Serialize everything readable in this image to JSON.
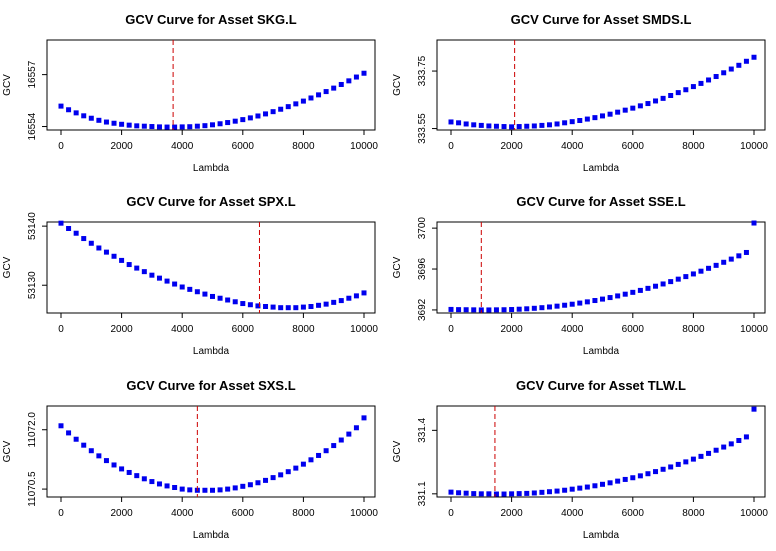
{
  "chart_data": [
    {
      "type": "scatter",
      "title": "GCV Curve for Asset SKG.L",
      "xlabel": "Lambda",
      "ylabel": "GCV",
      "xlim": [
        0,
        10000
      ],
      "ylim": [
        16553.8,
        16559.0
      ],
      "xticks": [
        "0",
        "2000",
        "4000",
        "6000",
        "8000",
        "10000"
      ],
      "yticks": [
        {
          "label": "16554",
          "value": 16554
        },
        {
          "label": "16557",
          "value": 16557
        }
      ],
      "vline": 3700,
      "point_color": "#0000EE",
      "vline_color": "#CC0000",
      "x": [
        0,
        250,
        500,
        750,
        1000,
        1250,
        1500,
        1750,
        2000,
        2250,
        2500,
        2750,
        3000,
        3250,
        3500,
        3750,
        4000,
        4250,
        4500,
        4750,
        5000,
        5250,
        5500,
        5750,
        6000,
        6250,
        6500,
        6750,
        7000,
        7250,
        7500,
        7750,
        8000,
        8250,
        8500,
        8750,
        9000,
        9250,
        9500,
        9750,
        10000
      ],
      "y": [
        16555.18,
        16554.97,
        16554.79,
        16554.62,
        16554.48,
        16554.36,
        16554.26,
        16554.19,
        16554.13,
        16554.08,
        16554.04,
        16554.02,
        16554.0,
        16553.98,
        16553.97,
        16553.97,
        16553.98,
        16553.99,
        16554.02,
        16554.05,
        16554.1,
        16554.16,
        16554.23,
        16554.31,
        16554.4,
        16554.5,
        16554.61,
        16554.73,
        16554.86,
        16555.0,
        16555.15,
        16555.31,
        16555.47,
        16555.65,
        16555.83,
        16556.02,
        16556.22,
        16556.43,
        16556.64,
        16556.86,
        16557.08
      ]
    },
    {
      "type": "scatter",
      "title": "GCV Curve for Asset SMDS.L",
      "xlabel": "Lambda",
      "ylabel": "GCV",
      "xlim": [
        0,
        10000
      ],
      "ylim": [
        333.545,
        333.858
      ],
      "xticks": [
        "0",
        "2000",
        "4000",
        "6000",
        "8000",
        "10000"
      ],
      "yticks": [
        {
          "label": "333.55",
          "value": 333.55
        },
        {
          "label": "333.75",
          "value": 333.75
        }
      ],
      "vline": 2100,
      "point_color": "#0000EE",
      "vline_color": "#CC0000",
      "x": [
        0,
        250,
        500,
        750,
        1000,
        1250,
        1500,
        1750,
        2000,
        2250,
        2500,
        2750,
        3000,
        3250,
        3500,
        3750,
        4000,
        4250,
        4500,
        4750,
        5000,
        5250,
        5500,
        5750,
        6000,
        6250,
        6500,
        6750,
        7000,
        7250,
        7500,
        7750,
        8000,
        8250,
        8500,
        8750,
        9000,
        9250,
        9500,
        9750,
        10000
      ],
      "y": [
        333.573,
        333.57,
        333.566,
        333.563,
        333.561,
        333.559,
        333.558,
        333.557,
        333.556,
        333.557,
        333.558,
        333.559,
        333.561,
        333.563,
        333.566,
        333.57,
        333.574,
        333.578,
        333.583,
        333.588,
        333.594,
        333.6,
        333.607,
        333.614,
        333.621,
        333.629,
        333.637,
        333.646,
        333.655,
        333.665,
        333.675,
        333.685,
        333.696,
        333.707,
        333.719,
        333.731,
        333.744,
        333.757,
        333.77,
        333.784,
        333.798
      ]
    },
    {
      "type": "scatter",
      "title": "GCV Curve for Asset SPX.L",
      "xlabel": "Lambda",
      "ylabel": "GCV",
      "xlim": [
        0,
        10000
      ],
      "ylim": [
        53125.3,
        53140.7
      ],
      "xticks": [
        "0",
        "2000",
        "4000",
        "6000",
        "8000",
        "10000"
      ],
      "yticks": [
        {
          "label": "53130",
          "value": 53130
        },
        {
          "label": "53140",
          "value": 53140
        }
      ],
      "vline": 6550,
      "point_color": "#0000EE",
      "vline_color": "#CC0000",
      "x": [
        0,
        250,
        500,
        750,
        1000,
        1250,
        1500,
        1750,
        2000,
        2250,
        2500,
        2750,
        3000,
        3250,
        3500,
        3750,
        4000,
        4250,
        4500,
        4750,
        5000,
        5250,
        5500,
        5750,
        6000,
        6250,
        6500,
        6750,
        7000,
        7250,
        7500,
        7750,
        8000,
        8250,
        8500,
        8750,
        9000,
        9250,
        9500,
        9750,
        10000
      ],
      "y": [
        53140.5,
        53139.6,
        53138.8,
        53137.9,
        53137.1,
        53136.3,
        53135.6,
        53134.9,
        53134.2,
        53133.5,
        53132.9,
        53132.3,
        53131.7,
        53131.2,
        53130.7,
        53130.2,
        53129.7,
        53129.3,
        53128.9,
        53128.5,
        53128.1,
        53127.8,
        53127.5,
        53127.2,
        53126.9,
        53126.7,
        53126.5,
        53126.4,
        53126.3,
        53126.2,
        53126.2,
        53126.2,
        53126.3,
        53126.4,
        53126.6,
        53126.8,
        53127.1,
        53127.4,
        53127.8,
        53128.2,
        53128.7
      ]
    },
    {
      "type": "scatter",
      "title": "GCV Curve for Asset SSE.L",
      "xlabel": "Lambda",
      "ylabel": "GCV",
      "xlim": [
        0,
        10000
      ],
      "ylim": [
        3691.7,
        3700.6
      ],
      "xticks": [
        "0",
        "2000",
        "4000",
        "6000",
        "8000",
        "10000"
      ],
      "yticks": [
        {
          "label": "3692",
          "value": 3692
        },
        {
          "label": "3696",
          "value": 3696
        },
        {
          "label": "3700",
          "value": 3700
        }
      ],
      "vline": 1000,
      "point_color": "#0000EE",
      "vline_color": "#CC0000",
      "x": [
        0,
        250,
        500,
        750,
        1000,
        1250,
        1500,
        1750,
        2000,
        2250,
        2500,
        2750,
        3000,
        3250,
        3500,
        3750,
        4000,
        4250,
        4500,
        4750,
        5000,
        5250,
        5500,
        5750,
        6000,
        6250,
        6500,
        6750,
        7000,
        7250,
        7500,
        7750,
        8000,
        8250,
        8500,
        8750,
        9000,
        9250,
        9500,
        9750,
        10000
      ],
      "y": [
        3692.05,
        3692.03,
        3692.02,
        3692.01,
        3692.0,
        3692.0,
        3692.01,
        3692.02,
        3692.04,
        3692.07,
        3692.11,
        3692.16,
        3692.22,
        3692.29,
        3692.37,
        3692.46,
        3692.56,
        3692.67,
        3692.79,
        3692.92,
        3693.06,
        3693.21,
        3693.37,
        3693.54,
        3693.72,
        3693.91,
        3694.11,
        3694.32,
        3694.54,
        3694.77,
        3695.01,
        3695.26,
        3695.52,
        3695.79,
        3696.07,
        3696.36,
        3696.66,
        3696.97,
        3697.29,
        3697.62,
        3700.5
      ]
    },
    {
      "type": "scatter",
      "title": "GCV Curve for Asset SXS.L",
      "xlabel": "Lambda",
      "ylabel": "GCV",
      "xlim": [
        0,
        10000
      ],
      "ylim": [
        11070.3,
        11072.6
      ],
      "xticks": [
        "0",
        "2000",
        "4000",
        "6000",
        "8000",
        "10000"
      ],
      "yticks": [
        {
          "label": "11070.5",
          "value": 11070.5
        },
        {
          "label": "11072.0",
          "value": 11072.0
        }
      ],
      "vline": 4500,
      "point_color": "#0000EE",
      "vline_color": "#CC0000",
      "x": [
        0,
        250,
        500,
        750,
        1000,
        1250,
        1500,
        1750,
        2000,
        2250,
        2500,
        2750,
        3000,
        3250,
        3500,
        3750,
        4000,
        4250,
        4500,
        4750,
        5000,
        5250,
        5500,
        5750,
        6000,
        6250,
        6500,
        6750,
        7000,
        7250,
        7500,
        7750,
        8000,
        8250,
        8500,
        8750,
        9000,
        9250,
        9500,
        9750,
        10000
      ],
      "y": [
        11072.1,
        11071.92,
        11071.76,
        11071.61,
        11071.47,
        11071.34,
        11071.22,
        11071.11,
        11071.01,
        11070.92,
        11070.84,
        11070.76,
        11070.69,
        11070.63,
        11070.58,
        11070.54,
        11070.5,
        11070.48,
        11070.47,
        11070.47,
        11070.47,
        11070.48,
        11070.5,
        11070.53,
        11070.57,
        11070.61,
        11070.66,
        11070.72,
        11070.79,
        11070.86,
        11070.94,
        11071.03,
        11071.13,
        11071.24,
        11071.35,
        11071.47,
        11071.6,
        11071.74,
        11071.89,
        11072.05,
        11072.3
      ]
    },
    {
      "type": "scatter",
      "title": "GCV Curve for Asset TLW.L",
      "xlabel": "Lambda",
      "ylabel": "GCV",
      "xlim": [
        0,
        10000
      ],
      "ylim": [
        331.085,
        331.515
      ],
      "xticks": [
        "0",
        "2000",
        "4000",
        "6000",
        "8000",
        "10000"
      ],
      "yticks": [
        {
          "label": "331.1",
          "value": 331.1
        },
        {
          "label": "331.4",
          "value": 331.4
        }
      ],
      "vline": 1450,
      "point_color": "#0000EE",
      "vline_color": "#CC0000",
      "x": [
        0,
        250,
        500,
        750,
        1000,
        1250,
        1500,
        1750,
        2000,
        2250,
        2500,
        2750,
        3000,
        3250,
        3500,
        3750,
        4000,
        4250,
        4500,
        4750,
        5000,
        5250,
        5500,
        5750,
        6000,
        6250,
        6500,
        6750,
        7000,
        7250,
        7500,
        7750,
        8000,
        8250,
        8500,
        8750,
        9000,
        9250,
        9500,
        9750,
        10000
      ],
      "y": [
        331.108,
        331.105,
        331.103,
        331.101,
        331.1,
        331.1,
        331.099,
        331.099,
        331.1,
        331.101,
        331.102,
        331.104,
        331.107,
        331.11,
        331.113,
        331.117,
        331.122,
        331.127,
        331.132,
        331.138,
        331.145,
        331.152,
        331.16,
        331.168,
        331.176,
        331.185,
        331.195,
        331.205,
        331.216,
        331.227,
        331.239,
        331.251,
        331.264,
        331.277,
        331.291,
        331.306,
        331.321,
        331.336,
        331.352,
        331.369,
        331.5
      ]
    }
  ]
}
